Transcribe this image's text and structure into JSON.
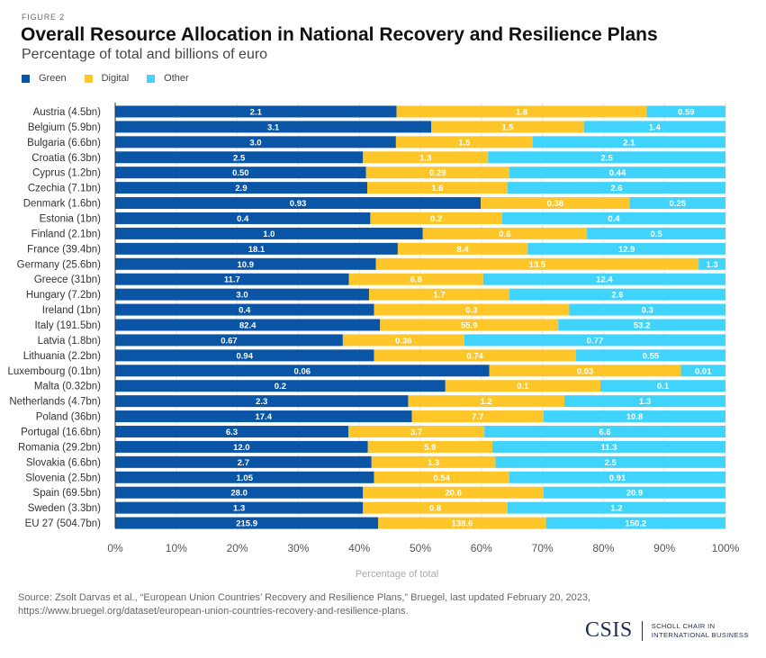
{
  "figure_label": "FIGURE 2",
  "title": "Overall Resource Allocation in National Recovery and Resilience Plans",
  "subtitle": "Percentage of total and billions of euro",
  "colors": {
    "green": "#0a55a6",
    "digital": "#ffc629",
    "other": "#40d3fc",
    "grid": "#e6e6e6",
    "axis": "#333333"
  },
  "chart_data": {
    "type": "bar",
    "orientation": "horizontal",
    "stacked": true,
    "normalized_percent": true,
    "title": "Overall Resource Allocation in National Recovery and Resilience Plans",
    "subtitle": "Percentage of total and billions of euro",
    "xlabel": "Percentage of total",
    "ylabel": "",
    "xlim": [
      0,
      100
    ],
    "xticks": [
      "0%",
      "10%",
      "20%",
      "30%",
      "40%",
      "50%",
      "60%",
      "70%",
      "80%",
      "90%",
      "100%"
    ],
    "grid": true,
    "legend_position": "top-left",
    "categories": [
      "Austria (4.5bn)",
      "Belgium (5.9bn)",
      "Bulgaria (6.6bn)",
      "Croatia (6.3bn)",
      "Cyprus (1.2bn)",
      "Czechia (7.1bn)",
      "Denmark (1.6bn)",
      "Estonia (1bn)",
      "Finland (2.1bn)",
      "France (39.4bn)",
      "Germany (25.6bn)",
      "Greece (31bn)",
      "Hungary (7.2bn)",
      "Ireland (1bn)",
      "Italy (191.5bn)",
      "Latvia (1.8bn)",
      "Lithuania (2.2bn)",
      "Luxembourg (0.1bn)",
      "Malta (0.32bn)",
      "Netherlands (4.7bn)",
      "Poland (36bn)",
      "Portugal (16.6bn)",
      "Romania (29.2bn)",
      "Slovakia (6.6bn)",
      "Slovenia (2.5bn)",
      "Spain (69.5bn)",
      "Sweden (3.3bn)",
      "EU 27 (504.7bn)"
    ],
    "series": [
      {
        "name": "Green",
        "color": "#0a55a6",
        "labels": [
          "2.1",
          "3.1",
          "3.0",
          "2.5",
          "0.50",
          "2.9",
          "0.93",
          "0.4",
          "1.0",
          "18.1",
          "10.9",
          "11.7",
          "3.0",
          "0.4",
          "82.4",
          "0.67",
          "0.94",
          "0.06",
          "0.2",
          "2.3",
          "17.4",
          "6.3",
          "12.0",
          "2.7",
          "1.05",
          "28.0",
          "1.3",
          "215.9"
        ],
        "values": [
          2.1,
          3.1,
          3.0,
          2.5,
          0.5,
          2.9,
          0.93,
          0.4,
          1.0,
          18.1,
          10.9,
          11.7,
          3.0,
          0.4,
          82.4,
          0.67,
          0.94,
          0.06,
          0.2,
          2.3,
          17.4,
          6.3,
          12.0,
          2.7,
          1.05,
          28.0,
          1.3,
          215.9
        ],
        "percent": [
          46.1,
          51.8,
          46.0,
          40.6,
          41.1,
          41.3,
          59.9,
          41.8,
          50.4,
          46.3,
          42.7,
          38.3,
          41.6,
          42.4,
          43.4,
          37.3,
          42.4,
          61.3,
          54.1,
          48.0,
          48.6,
          38.2,
          41.4,
          42.0,
          42.4,
          40.6,
          40.6,
          43.1
        ]
      },
      {
        "name": "Digital",
        "color": "#ffc629",
        "labels": [
          "1.8",
          "1.5",
          "1.5",
          "1.3",
          "0.29",
          "1.6",
          "0.38",
          "0.2",
          "0.6",
          "8.4",
          "13.5",
          "6.8",
          "1.7",
          "0.3",
          "55.9",
          "0.36",
          "0.74",
          "0.03",
          "0.1",
          "1.2",
          "7.7",
          "3.7",
          "5.9",
          "1.3",
          "0.54",
          "20.6",
          "0.8",
          "138.6"
        ],
        "values": [
          1.8,
          1.5,
          1.5,
          1.3,
          0.29,
          1.6,
          0.38,
          0.2,
          0.6,
          8.4,
          13.5,
          6.8,
          1.7,
          0.3,
          55.9,
          0.36,
          0.74,
          0.03,
          0.1,
          1.2,
          7.7,
          3.7,
          5.9,
          1.3,
          0.54,
          20.6,
          0.8,
          138.6
        ],
        "percent": [
          41.0,
          25.0,
          22.4,
          20.5,
          23.5,
          23.0,
          24.4,
          21.6,
          26.9,
          21.3,
          52.9,
          22.0,
          23.0,
          32.0,
          29.2,
          19.9,
          33.1,
          31.4,
          25.4,
          25.6,
          21.6,
          22.3,
          20.4,
          20.3,
          22.2,
          29.6,
          23.7,
          27.5
        ]
      },
      {
        "name": "Other",
        "color": "#40d3fc",
        "labels": [
          "0.59",
          "1.4",
          "2.1",
          "2.5",
          "0.44",
          "2.6",
          "0.25",
          "0.4",
          "0.5",
          "12.9",
          "1.3",
          "12.4",
          "2.6",
          "0.3",
          "53.2",
          "0.77",
          "0.55",
          "0.01",
          "0.1",
          "1.3",
          "10.8",
          "6.6",
          "11.3",
          "2.5",
          "0.91",
          "20.9",
          "1.2",
          "150.2"
        ],
        "values": [
          0.59,
          1.4,
          2.1,
          2.5,
          0.44,
          2.6,
          0.25,
          0.4,
          0.5,
          12.9,
          1.3,
          12.4,
          2.6,
          0.3,
          53.2,
          0.77,
          0.55,
          0.01,
          0.1,
          1.3,
          10.8,
          6.6,
          11.3,
          2.5,
          0.91,
          20.9,
          1.2,
          150.2
        ],
        "percent": [
          12.9,
          23.2,
          31.6,
          38.9,
          35.4,
          35.7,
          15.7,
          36.6,
          22.7,
          32.4,
          4.4,
          39.7,
          35.4,
          25.6,
          27.4,
          42.8,
          24.5,
          7.3,
          20.5,
          26.4,
          29.8,
          39.5,
          38.2,
          37.7,
          35.4,
          29.8,
          35.7,
          29.4
        ]
      }
    ]
  },
  "legend": [
    {
      "label": "Green",
      "color": "#0a55a6"
    },
    {
      "label": "Digital",
      "color": "#ffc629"
    },
    {
      "label": "Other",
      "color": "#40d3fc"
    }
  ],
  "source": {
    "line1": "Source: Zsolt Darvas et al., “European Union Countries’ Recovery and Resilience Plans,” Bruegel, last updated February 20, 2023,",
    "line2": "https://www.bruegel.org/dataset/european-union-countries-recovery-and-resilience-plans."
  },
  "logo": {
    "name": "CSIS",
    "line1": "SCHOLL CHAIR IN",
    "line2": "INTERNATIONAL BUSINESS"
  }
}
